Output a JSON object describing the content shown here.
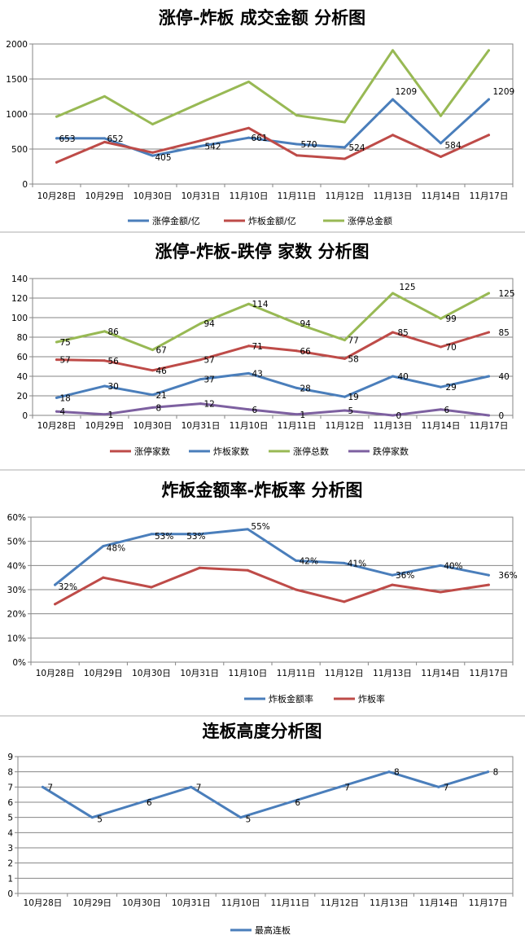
{
  "colors": {
    "blue": "#4a7ebb",
    "red": "#be4b48",
    "green": "#98b954",
    "purple": "#7d60a0",
    "grid": "#868686"
  },
  "chart_data": [
    {
      "type": "line",
      "title": "涨停-炸板 成交金额 分析图",
      "categories": [
        "10月28日",
        "10月29日",
        "10月30日",
        "10月31日",
        "11月10日",
        "11月11日",
        "11月12日",
        "11月13日",
        "11月14日",
        "11月17日"
      ],
      "ylim": [
        0,
        2000
      ],
      "yticks": [
        "0",
        "500",
        "1000",
        "1500",
        "2000"
      ],
      "grid": true,
      "legend_position": "bottom",
      "series": [
        {
          "name": "涨停金额/亿",
          "color": "blue",
          "values": [
            653,
            652,
            405,
            542,
            661,
            570,
            524,
            1209,
            584,
            1209
          ],
          "labels": [
            "653",
            "652",
            "405",
            "542",
            "661",
            "570",
            "524",
            "1209",
            "584",
            "1209"
          ]
        },
        {
          "name": "炸板金额/亿",
          "color": "red",
          "values": [
            310,
            600,
            450,
            620,
            800,
            410,
            360,
            700,
            390,
            700
          ]
        },
        {
          "name": "涨停总金额",
          "color": "green",
          "values": [
            963,
            1252,
            855,
            1162,
            1461,
            980,
            884,
            1909,
            974,
            1909
          ]
        }
      ]
    },
    {
      "type": "line",
      "title": "涨停-炸板-跌停 家数 分析图",
      "categories": [
        "10月28日",
        "10月29日",
        "10月30日",
        "10月31日",
        "11月10日",
        "11月11日",
        "11月12日",
        "11月13日",
        "11月14日",
        "11月17日"
      ],
      "ylim": [
        0,
        140
      ],
      "yticks": [
        "0",
        "20",
        "40",
        "60",
        "80",
        "100",
        "120",
        "140"
      ],
      "grid": true,
      "legend_position": "bottom",
      "series": [
        {
          "name": "涨停家数",
          "color": "red",
          "values": [
            57,
            56,
            46,
            57,
            71,
            66,
            58,
            85,
            70,
            85
          ],
          "labels": [
            "57",
            "56",
            "46",
            "57",
            "71",
            "66",
            "58",
            "85",
            "70",
            "85"
          ]
        },
        {
          "name": "炸板家数",
          "color": "blue",
          "values": [
            18,
            30,
            21,
            37,
            43,
            28,
            19,
            40,
            29,
            40
          ],
          "labels": [
            "18",
            "30",
            "21",
            "37",
            "43",
            "28",
            "19",
            "40",
            "29",
            "40"
          ]
        },
        {
          "name": "涨停总数",
          "color": "green",
          "values": [
            75,
            86,
            67,
            94,
            114,
            94,
            77,
            125,
            99,
            125
          ],
          "labels": [
            "75",
            "86",
            "67",
            "94",
            "114",
            "94",
            "77",
            "125",
            "99",
            "125"
          ]
        },
        {
          "name": "跌停家数",
          "color": "purple",
          "values": [
            4,
            1,
            8,
            12,
            6,
            1,
            5,
            0,
            6,
            0
          ],
          "labels": [
            "4",
            "1",
            "8",
            "12",
            "6",
            "1",
            "5",
            "0",
            "6",
            "0"
          ]
        }
      ]
    },
    {
      "type": "line",
      "title": "炸板金额率-炸板率 分析图",
      "categories": [
        "10月28日",
        "10月29日",
        "10月30日",
        "10月31日",
        "11月10日",
        "11月11日",
        "11月12日",
        "11月13日",
        "11月14日",
        "11月17日"
      ],
      "ylim": [
        0,
        60
      ],
      "yticks": [
        "0%",
        "10%",
        "20%",
        "30%",
        "40%",
        "50%",
        "60%"
      ],
      "grid": true,
      "legend_position": "bottom",
      "series": [
        {
          "name": "炸板金额率",
          "color": "blue",
          "values": [
            32,
            48,
            53,
            53,
            55,
            42,
            41,
            36,
            40,
            36
          ],
          "labels": [
            "32%",
            "48%",
            "53%",
            "53%",
            "55%",
            "42%",
            "41%",
            "36%",
            "40%",
            "36%"
          ]
        },
        {
          "name": "炸板率",
          "color": "red",
          "values": [
            24,
            35,
            31,
            39,
            38,
            30,
            25,
            32,
            29,
            32
          ]
        }
      ]
    },
    {
      "type": "line",
      "title": "连板高度分析图",
      "categories": [
        "10月28日",
        "10月29日",
        "10月30日",
        "10月31日",
        "11月10日",
        "11月11日",
        "11月12日",
        "11月13日",
        "11月14日",
        "11月17日"
      ],
      "ylim": [
        0,
        9
      ],
      "yticks": [
        "0",
        "1",
        "2",
        "3",
        "4",
        "5",
        "6",
        "7",
        "8",
        "9"
      ],
      "grid": true,
      "legend_position": "bottom",
      "series": [
        {
          "name": "最高连板",
          "color": "blue",
          "values": [
            7,
            5,
            6,
            7,
            5,
            6,
            7,
            8,
            7,
            8
          ],
          "labels": [
            "7",
            "5",
            "6",
            "7",
            "5",
            "6",
            "7",
            "8",
            "7",
            "8"
          ]
        }
      ]
    }
  ]
}
